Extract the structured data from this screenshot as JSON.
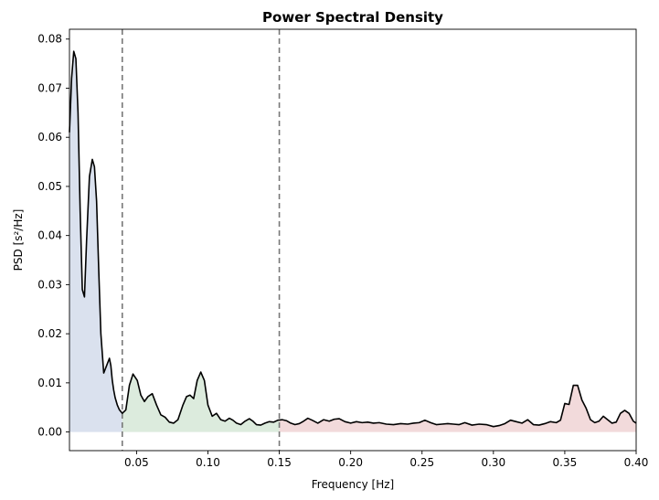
{
  "chart_data": {
    "type": "line",
    "title": "Power Spectral Density",
    "xlabel": "Frequency [Hz]",
    "ylabel": "PSD [s²/Hz]",
    "xlim": [
      0.003,
      0.4
    ],
    "ylim": [
      -0.0038,
      0.082
    ],
    "xticks": [
      0.05,
      0.1,
      0.15,
      0.2,
      0.25,
      0.3,
      0.35,
      0.4
    ],
    "xtick_labels": [
      "0.05",
      "0.10",
      "0.15",
      "0.20",
      "0.25",
      "0.30",
      "0.35",
      "0.40"
    ],
    "yticks": [
      0.0,
      0.01,
      0.02,
      0.03,
      0.04,
      0.05,
      0.06,
      0.07,
      0.08
    ],
    "ytick_labels": [
      "0.00",
      "0.01",
      "0.02",
      "0.03",
      "0.04",
      "0.05",
      "0.06",
      "0.07",
      "0.08"
    ],
    "grid": false,
    "vlines": [
      0.04,
      0.15
    ],
    "bands": [
      {
        "range": [
          0.003,
          0.04
        ],
        "color": "#dae1ee"
      },
      {
        "range": [
          0.04,
          0.15
        ],
        "color": "#dcebdd"
      },
      {
        "range": [
          0.15,
          0.4
        ],
        "color": "#f2dadb"
      }
    ],
    "line_color": "#000000",
    "vline_color": "#777777",
    "series": [
      {
        "x": [
          0.003,
          0.0045,
          0.006,
          0.0075,
          0.009,
          0.0105,
          0.012,
          0.0135,
          0.015,
          0.017,
          0.019,
          0.0205,
          0.022,
          0.0235,
          0.025,
          0.027,
          0.029,
          0.031,
          0.032,
          0.033,
          0.034,
          0.035,
          0.0365,
          0.038,
          0.04,
          0.0425,
          0.045,
          0.0475,
          0.0505,
          0.053,
          0.0555,
          0.058,
          0.061,
          0.064,
          0.067,
          0.07,
          0.073,
          0.076,
          0.079,
          0.0825,
          0.085,
          0.0875,
          0.09,
          0.0925,
          0.095,
          0.0975,
          0.1,
          0.103,
          0.106,
          0.109,
          0.112,
          0.115,
          0.1175,
          0.12,
          0.123,
          0.126,
          0.129,
          0.1315,
          0.134,
          0.137,
          0.14,
          0.143,
          0.146,
          0.149,
          0.152,
          0.155,
          0.158,
          0.161,
          0.164,
          0.167,
          0.17,
          0.173,
          0.177,
          0.181,
          0.185,
          0.1885,
          0.192,
          0.196,
          0.2,
          0.204,
          0.208,
          0.212,
          0.216,
          0.22,
          0.225,
          0.23,
          0.235,
          0.24,
          0.244,
          0.248,
          0.252,
          0.256,
          0.26,
          0.264,
          0.268,
          0.272,
          0.276,
          0.28,
          0.285,
          0.29,
          0.295,
          0.3,
          0.304,
          0.308,
          0.312,
          0.316,
          0.32,
          0.324,
          0.328,
          0.332,
          0.336,
          0.34,
          0.344,
          0.347,
          0.35,
          0.353,
          0.356,
          0.359,
          0.362,
          0.365,
          0.368,
          0.371,
          0.374,
          0.377,
          0.38,
          0.383,
          0.386,
          0.389,
          0.392,
          0.395,
          0.398,
          0.4
        ],
        "y": [
          0.061,
          0.072,
          0.0775,
          0.076,
          0.065,
          0.045,
          0.029,
          0.0275,
          0.039,
          0.052,
          0.0555,
          0.054,
          0.047,
          0.033,
          0.02,
          0.012,
          0.0135,
          0.015,
          0.0135,
          0.0105,
          0.0085,
          0.007,
          0.0055,
          0.0045,
          0.0038,
          0.0045,
          0.0095,
          0.0118,
          0.0105,
          0.0075,
          0.0062,
          0.0072,
          0.0078,
          0.0055,
          0.0035,
          0.003,
          0.002,
          0.0018,
          0.0025,
          0.0055,
          0.0072,
          0.0075,
          0.0068,
          0.0105,
          0.0122,
          0.0105,
          0.0055,
          0.0032,
          0.0038,
          0.0025,
          0.0022,
          0.0028,
          0.0024,
          0.0018,
          0.0015,
          0.0022,
          0.0027,
          0.0022,
          0.0015,
          0.0014,
          0.0018,
          0.0021,
          0.002,
          0.0024,
          0.0025,
          0.0023,
          0.0018,
          0.0015,
          0.0017,
          0.0022,
          0.0028,
          0.0024,
          0.0018,
          0.0025,
          0.0022,
          0.0026,
          0.0027,
          0.0021,
          0.0018,
          0.0021,
          0.0019,
          0.002,
          0.0018,
          0.0019,
          0.0016,
          0.0015,
          0.0017,
          0.0016,
          0.0018,
          0.0019,
          0.0024,
          0.0019,
          0.0015,
          0.0016,
          0.0017,
          0.0016,
          0.0015,
          0.0019,
          0.0014,
          0.0016,
          0.0015,
          0.0011,
          0.0013,
          0.0017,
          0.0024,
          0.0021,
          0.0018,
          0.0025,
          0.0015,
          0.0014,
          0.0017,
          0.0021,
          0.0019,
          0.0024,
          0.0058,
          0.0056,
          0.0095,
          0.0095,
          0.0065,
          0.0048,
          0.0025,
          0.0019,
          0.0022,
          0.0032,
          0.0025,
          0.0018,
          0.002,
          0.0038,
          0.0044,
          0.0038,
          0.0022,
          0.0018
        ]
      }
    ]
  }
}
